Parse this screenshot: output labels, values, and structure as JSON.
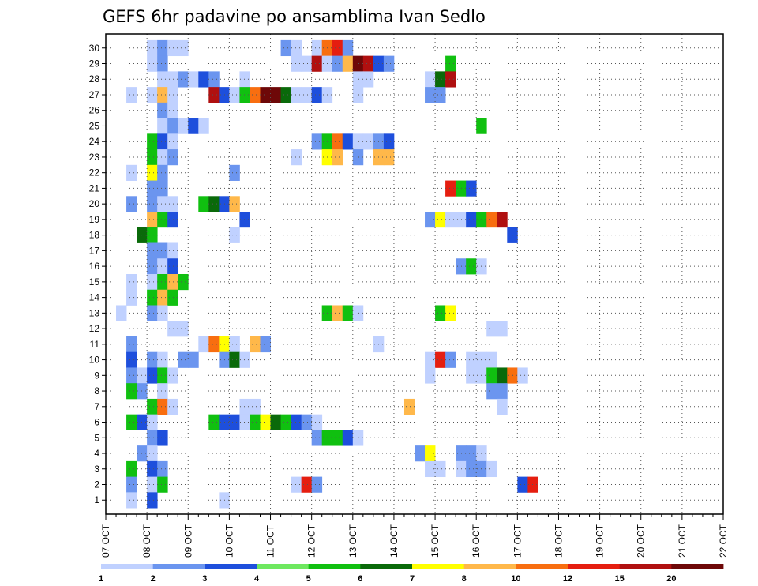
{
  "chart_data": {
    "type": "heatmap",
    "title": "GEFS 6hr padavine po ansamblima Ivan Sedlo",
    "xlabel": "",
    "ylabel": "",
    "x_ticks": [
      "07 OCT",
      "08 OCT",
      "09 OCT",
      "10 OCT",
      "11 OCT",
      "12 OCT",
      "13 OCT",
      "14 OCT",
      "15 OCT",
      "16 OCT",
      "17 OCT",
      "18 OCT",
      "19 OCT",
      "20 OCT",
      "21 OCT",
      "22 OCT"
    ],
    "y_ticks": [
      "1",
      "2",
      "3",
      "4",
      "5",
      "6",
      "7",
      "8",
      "9",
      "10",
      "11",
      "12",
      "13",
      "14",
      "15",
      "16",
      "17",
      "18",
      "19",
      "20",
      "21",
      "22",
      "23",
      "24",
      "25",
      "26",
      "27",
      "28",
      "29",
      "30"
    ],
    "x_unit": "6-hour steps from 07 OCT 00Z (4 per day)",
    "grid": true,
    "legend_placement": "bottom",
    "colorbar": {
      "labels": [
        "1",
        "2",
        "3",
        "4",
        "5",
        "6",
        "7",
        "8",
        "10",
        "12",
        "15",
        "20"
      ],
      "colors": [
        "#c0d1ff",
        "#6b95ef",
        "#1e4fdc",
        "#6ee860",
        "#10c010",
        "#0a6a0a",
        "#ffff00",
        "#ffb84a",
        "#f86e10",
        "#e51e10",
        "#b01010",
        "#6e0808"
      ]
    },
    "cells": [
      [
        30,
        4,
        1
      ],
      [
        30,
        5,
        2
      ],
      [
        30,
        6,
        1
      ],
      [
        30,
        7,
        1
      ],
      [
        30,
        17,
        2
      ],
      [
        30,
        18,
        1
      ],
      [
        30,
        20,
        1
      ],
      [
        30,
        21,
        10
      ],
      [
        30,
        22,
        12
      ],
      [
        30,
        23,
        2
      ],
      [
        29,
        4,
        1
      ],
      [
        29,
        5,
        2
      ],
      [
        29,
        18,
        1
      ],
      [
        29,
        19,
        1
      ],
      [
        29,
        20,
        15
      ],
      [
        29,
        21,
        1
      ],
      [
        29,
        22,
        2
      ],
      [
        29,
        23,
        8
      ],
      [
        29,
        24,
        20
      ],
      [
        29,
        25,
        15
      ],
      [
        29,
        26,
        3
      ],
      [
        29,
        27,
        2
      ],
      [
        29,
        33,
        5
      ],
      [
        28,
        5,
        1
      ],
      [
        28,
        6,
        1
      ],
      [
        28,
        7,
        2
      ],
      [
        28,
        8,
        1
      ],
      [
        28,
        9,
        3
      ],
      [
        28,
        10,
        2
      ],
      [
        28,
        13,
        1
      ],
      [
        28,
        24,
        1
      ],
      [
        28,
        25,
        1
      ],
      [
        28,
        31,
        1
      ],
      [
        28,
        32,
        6
      ],
      [
        28,
        33,
        15
      ],
      [
        27,
        2,
        1
      ],
      [
        27,
        4,
        1
      ],
      [
        27,
        5,
        8
      ],
      [
        27,
        6,
        1
      ],
      [
        27,
        10,
        15
      ],
      [
        27,
        11,
        3
      ],
      [
        27,
        12,
        1
      ],
      [
        27,
        13,
        5
      ],
      [
        27,
        14,
        10
      ],
      [
        27,
        15,
        20
      ],
      [
        27,
        16,
        20
      ],
      [
        27,
        17,
        6
      ],
      [
        27,
        18,
        1
      ],
      [
        27,
        19,
        1
      ],
      [
        27,
        20,
        3
      ],
      [
        27,
        21,
        1
      ],
      [
        27,
        24,
        1
      ],
      [
        27,
        31,
        2
      ],
      [
        27,
        32,
        2
      ],
      [
        26,
        5,
        2
      ],
      [
        26,
        6,
        1
      ],
      [
        25,
        5,
        1
      ],
      [
        25,
        6,
        2
      ],
      [
        25,
        7,
        1
      ],
      [
        25,
        8,
        3
      ],
      [
        25,
        9,
        1
      ],
      [
        25,
        36,
        5
      ],
      [
        24,
        4,
        5
      ],
      [
        24,
        5,
        3
      ],
      [
        24,
        6,
        1
      ],
      [
        24,
        20,
        2
      ],
      [
        24,
        21,
        5
      ],
      [
        24,
        22,
        10
      ],
      [
        24,
        23,
        3
      ],
      [
        24,
        24,
        1
      ],
      [
        24,
        25,
        1
      ],
      [
        24,
        26,
        2
      ],
      [
        24,
        27,
        3
      ],
      [
        23,
        4,
        5
      ],
      [
        23,
        5,
        1
      ],
      [
        23,
        6,
        2
      ],
      [
        23,
        18,
        1
      ],
      [
        23,
        21,
        7
      ],
      [
        23,
        22,
        8
      ],
      [
        23,
        24,
        2
      ],
      [
        23,
        26,
        8
      ],
      [
        23,
        27,
        8
      ],
      [
        22,
        2,
        1
      ],
      [
        22,
        4,
        7
      ],
      [
        22,
        5,
        2
      ],
      [
        22,
        12,
        2
      ],
      [
        21,
        4,
        2
      ],
      [
        21,
        5,
        2
      ],
      [
        21,
        33,
        12
      ],
      [
        21,
        34,
        5
      ],
      [
        21,
        35,
        3
      ],
      [
        20,
        2,
        2
      ],
      [
        20,
        4,
        2
      ],
      [
        20,
        5,
        1
      ],
      [
        20,
        6,
        1
      ],
      [
        20,
        9,
        5
      ],
      [
        20,
        10,
        6
      ],
      [
        20,
        11,
        3
      ],
      [
        20,
        12,
        8
      ],
      [
        19,
        4,
        8
      ],
      [
        19,
        5,
        5
      ],
      [
        19,
        6,
        3
      ],
      [
        19,
        13,
        3
      ],
      [
        19,
        31,
        2
      ],
      [
        19,
        32,
        7
      ],
      [
        19,
        33,
        1
      ],
      [
        19,
        34,
        1
      ],
      [
        19,
        35,
        3
      ],
      [
        19,
        36,
        5
      ],
      [
        19,
        37,
        10
      ],
      [
        19,
        38,
        15
      ],
      [
        18,
        3,
        6
      ],
      [
        18,
        4,
        5
      ],
      [
        18,
        12,
        1
      ],
      [
        18,
        39,
        3
      ],
      [
        17,
        4,
        2
      ],
      [
        17,
        5,
        2
      ],
      [
        17,
        6,
        1
      ],
      [
        16,
        4,
        2
      ],
      [
        16,
        5,
        1
      ],
      [
        16,
        6,
        3
      ],
      [
        16,
        34,
        2
      ],
      [
        16,
        35,
        5
      ],
      [
        16,
        36,
        1
      ],
      [
        15,
        2,
        1
      ],
      [
        15,
        4,
        1
      ],
      [
        15,
        5,
        5
      ],
      [
        15,
        6,
        8
      ],
      [
        15,
        7,
        5
      ],
      [
        14,
        2,
        1
      ],
      [
        14,
        4,
        5
      ],
      [
        14,
        5,
        8
      ],
      [
        14,
        6,
        5
      ],
      [
        13,
        1,
        1
      ],
      [
        13,
        4,
        2
      ],
      [
        13,
        5,
        1
      ],
      [
        13,
        21,
        5
      ],
      [
        13,
        22,
        8
      ],
      [
        13,
        23,
        5
      ],
      [
        13,
        24,
        1
      ],
      [
        13,
        32,
        5
      ],
      [
        13,
        33,
        7
      ],
      [
        12,
        6,
        1
      ],
      [
        12,
        7,
        1
      ],
      [
        12,
        37,
        1
      ],
      [
        12,
        38,
        1
      ],
      [
        11,
        2,
        2
      ],
      [
        11,
        9,
        1
      ],
      [
        11,
        10,
        10
      ],
      [
        11,
        11,
        7
      ],
      [
        11,
        12,
        1
      ],
      [
        11,
        14,
        8
      ],
      [
        11,
        15,
        2
      ],
      [
        11,
        26,
        1
      ],
      [
        10,
        2,
        3
      ],
      [
        10,
        4,
        2
      ],
      [
        10,
        5,
        1
      ],
      [
        10,
        7,
        2
      ],
      [
        10,
        8,
        2
      ],
      [
        10,
        11,
        2
      ],
      [
        10,
        12,
        6
      ],
      [
        10,
        13,
        1
      ],
      [
        10,
        31,
        1
      ],
      [
        10,
        32,
        12
      ],
      [
        10,
        33,
        2
      ],
      [
        10,
        35,
        1
      ],
      [
        10,
        36,
        1
      ],
      [
        10,
        37,
        1
      ],
      [
        9,
        2,
        2
      ],
      [
        9,
        3,
        1
      ],
      [
        9,
        4,
        3
      ],
      [
        9,
        5,
        5
      ],
      [
        9,
        6,
        1
      ],
      [
        9,
        31,
        1
      ],
      [
        9,
        35,
        1
      ],
      [
        9,
        36,
        1
      ],
      [
        9,
        37,
        5
      ],
      [
        9,
        38,
        6
      ],
      [
        9,
        39,
        10
      ],
      [
        9,
        40,
        1
      ],
      [
        8,
        2,
        5
      ],
      [
        8,
        3,
        2
      ],
      [
        8,
        5,
        1
      ],
      [
        8,
        37,
        2
      ],
      [
        8,
        38,
        2
      ],
      [
        7,
        4,
        5
      ],
      [
        7,
        5,
        10
      ],
      [
        7,
        6,
        1
      ],
      [
        7,
        13,
        1
      ],
      [
        7,
        14,
        1
      ],
      [
        7,
        29,
        8
      ],
      [
        7,
        38,
        1
      ],
      [
        6,
        2,
        5
      ],
      [
        6,
        3,
        3
      ],
      [
        6,
        4,
        1
      ],
      [
        6,
        10,
        5
      ],
      [
        6,
        11,
        3
      ],
      [
        6,
        12,
        3
      ],
      [
        6,
        13,
        1
      ],
      [
        6,
        14,
        5
      ],
      [
        6,
        15,
        7
      ],
      [
        6,
        16,
        6
      ],
      [
        6,
        17,
        5
      ],
      [
        6,
        18,
        3
      ],
      [
        6,
        19,
        2
      ],
      [
        6,
        20,
        1
      ],
      [
        5,
        4,
        2
      ],
      [
        5,
        5,
        3
      ],
      [
        5,
        20,
        2
      ],
      [
        5,
        21,
        5
      ],
      [
        5,
        22,
        5
      ],
      [
        5,
        23,
        3
      ],
      [
        5,
        24,
        1
      ],
      [
        4,
        3,
        2
      ],
      [
        4,
        4,
        1
      ],
      [
        4,
        30,
        2
      ],
      [
        4,
        31,
        7
      ],
      [
        4,
        34,
        2
      ],
      [
        4,
        35,
        2
      ],
      [
        4,
        36,
        1
      ],
      [
        3,
        2,
        5
      ],
      [
        3,
        4,
        3
      ],
      [
        3,
        5,
        2
      ],
      [
        3,
        31,
        1
      ],
      [
        3,
        32,
        1
      ],
      [
        3,
        34,
        1
      ],
      [
        3,
        35,
        2
      ],
      [
        3,
        36,
        2
      ],
      [
        3,
        37,
        1
      ],
      [
        2,
        2,
        2
      ],
      [
        2,
        4,
        1
      ],
      [
        2,
        5,
        5
      ],
      [
        2,
        18,
        1
      ],
      [
        2,
        19,
        12
      ],
      [
        2,
        20,
        2
      ],
      [
        2,
        40,
        3
      ],
      [
        2,
        41,
        12
      ],
      [
        1,
        2,
        1
      ],
      [
        1,
        4,
        3
      ],
      [
        1,
        11,
        1
      ]
    ]
  }
}
